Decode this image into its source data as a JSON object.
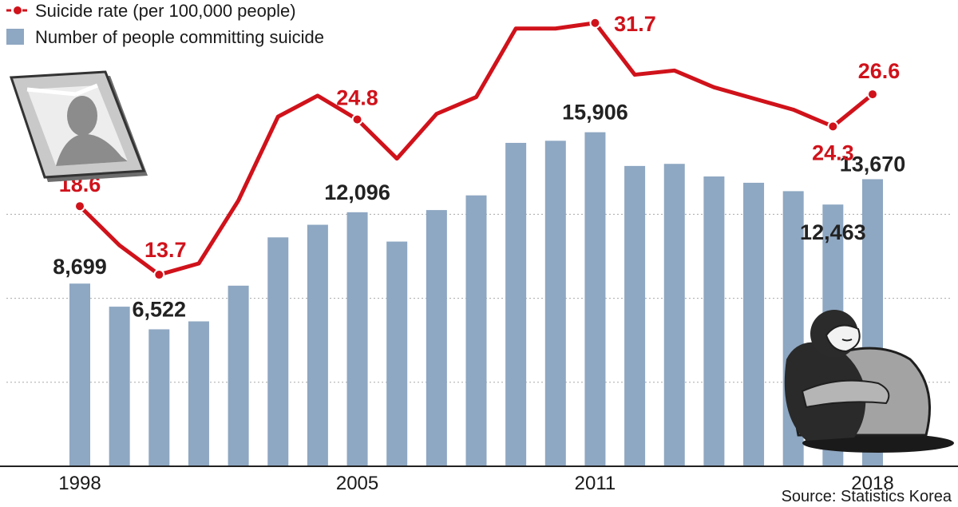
{
  "chart_data": {
    "type": "bar+line",
    "legend": {
      "placement": "top-left",
      "items": [
        {
          "label": "Suicide rate (per 100,000 people)",
          "marker": "line-dot"
        },
        {
          "label": "Number of people committing suicide",
          "marker": "bar"
        }
      ]
    },
    "x": [
      1998,
      1999,
      2000,
      2001,
      2002,
      2003,
      2004,
      2005,
      2006,
      2007,
      2008,
      2009,
      2010,
      2011,
      2012,
      2013,
      2014,
      2015,
      2016,
      2017,
      2018
    ],
    "x_tick_labels": [
      "1998",
      "2005",
      "2011",
      "2018"
    ],
    "x_tick_years": [
      1998,
      2005,
      2011,
      2018
    ],
    "series": [
      {
        "name": "Number of people committing suicide",
        "kind": "bar",
        "color": "#8ea7c2",
        "values": [
          8699,
          7600,
          6522,
          6900,
          8600,
          10900,
          11500,
          12096,
          10700,
          12200,
          12900,
          15400,
          15500,
          15906,
          14300,
          14400,
          13800,
          13500,
          13100,
          12463,
          13670
        ],
        "labels": [
          {
            "year": 1998,
            "text": "8,699"
          },
          {
            "year": 2000,
            "text": "6,522"
          },
          {
            "year": 2005,
            "text": "12,096"
          },
          {
            "year": 2011,
            "text": "15,906"
          },
          {
            "year": 2017,
            "text": "12,463"
          },
          {
            "year": 2018,
            "text": "13,670"
          }
        ]
      },
      {
        "name": "Suicide rate (per 100,000 people)",
        "kind": "line",
        "color": "#d0121b",
        "values": [
          18.6,
          15.8,
          13.7,
          14.5,
          19.0,
          25.0,
          26.5,
          24.8,
          22.0,
          25.2,
          26.4,
          31.3,
          31.3,
          31.7,
          28.0,
          28.3,
          27.1,
          26.3,
          25.5,
          24.3,
          26.6
        ],
        "labels": [
          {
            "year": 1998,
            "text": "18.6"
          },
          {
            "year": 2000,
            "text": "13.7"
          },
          {
            "year": 2005,
            "text": "24.8"
          },
          {
            "year": 2011,
            "text": "31.7"
          },
          {
            "year": 2017,
            "text": "24.3"
          },
          {
            "year": 2018,
            "text": "26.6"
          }
        ]
      }
    ],
    "bar_axis": {
      "ylim": [
        0,
        16500
      ]
    },
    "line_axis": {
      "ylim": [
        0,
        33
      ]
    },
    "gridlines": true,
    "source": "Source: Statistics Korea"
  },
  "illustrations": {
    "portrait": "memorial-portrait-frame",
    "figure": "person-hugging-knees"
  },
  "colors": {
    "bar": "#8ea7c2",
    "line": "#d0121b",
    "label": "#222222",
    "grid": "#a8a8a8"
  }
}
